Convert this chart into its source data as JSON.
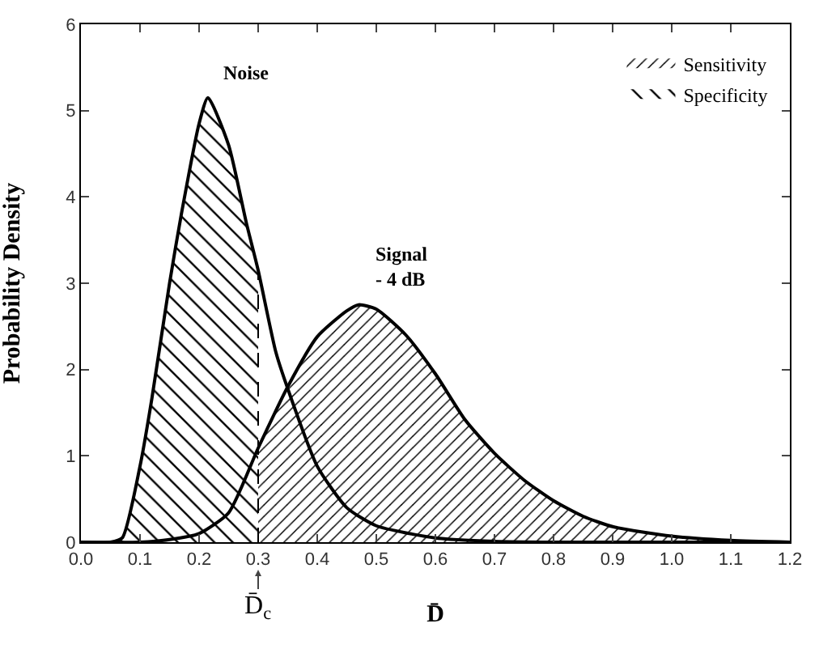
{
  "chart_data": {
    "type": "line",
    "xlabel": "D̄",
    "ylabel": "Probability Density",
    "xlim": [
      0,
      1.2
    ],
    "xticks": [
      {
        "value": 0,
        "label": "0.0"
      },
      0.1,
      0.2,
      0.3,
      0.4,
      0.5,
      0.6,
      0.7,
      0.8,
      0.9,
      {
        "value": 1,
        "label": "1.0"
      },
      1.1,
      1.2
    ],
    "ylim": [
      0,
      6
    ],
    "yticks": [
      0,
      1,
      2,
      3,
      4,
      5,
      6
    ],
    "grid": false,
    "legend": "top right",
    "marker": "none",
    "line_style": "solid",
    "series": [
      {
        "name": "Noise",
        "type": "line",
        "color": "#000000",
        "x": [
          0,
          0.05,
          0.07,
          0.1,
          0.12,
          0.15,
          0.17,
          0.2,
          0.215,
          0.25,
          0.28,
          0.3,
          0.33,
          0.35,
          0.4,
          0.45,
          0.5,
          0.6,
          0.7,
          0.8,
          1.2
        ],
        "values": [
          0,
          0,
          0.05,
          0.88,
          1.66,
          3.0,
          3.8,
          4.85,
          5.15,
          4.6,
          3.7,
          3.15,
          2.2,
          1.78,
          0.88,
          0.4,
          0.19,
          0.05,
          0.01,
          0,
          0
        ]
      },
      {
        "name": "Signal\n- 4 dB",
        "type": "line",
        "color": "#000000",
        "x": [
          0,
          0.1,
          0.15,
          0.2,
          0.25,
          0.3,
          0.35,
          0.4,
          0.45,
          0.47,
          0.5,
          0.55,
          0.6,
          0.65,
          0.7,
          0.75,
          0.8,
          0.85,
          0.9,
          1.0,
          1.1,
          1.2
        ],
        "values": [
          0,
          0,
          0.03,
          0.1,
          0.34,
          1.09,
          1.8,
          2.38,
          2.68,
          2.75,
          2.7,
          2.4,
          1.95,
          1.42,
          1.03,
          0.72,
          0.48,
          0.3,
          0.18,
          0.07,
          0.02,
          0
        ]
      },
      {
        "name": "Sensitivity",
        "type": "area",
        "color": "#000000",
        "x": [
          0.3,
          0.35,
          0.4,
          0.45,
          0.47,
          0.5,
          0.55,
          0.6,
          0.65,
          0.7,
          0.75,
          0.8,
          0.85,
          0.9,
          1.0,
          1.1,
          1.2
        ],
        "values": [
          1.09,
          1.8,
          2.38,
          2.68,
          2.75,
          2.7,
          2.4,
          1.95,
          1.42,
          1.03,
          0.72,
          0.48,
          0.3,
          0.18,
          0.07,
          0.02,
          0
        ]
      },
      {
        "name": "Specificity",
        "type": "area",
        "color": "#000000",
        "x": [
          0.05,
          0.07,
          0.1,
          0.12,
          0.15,
          0.17,
          0.2,
          0.215,
          0.25,
          0.28,
          0.3
        ],
        "values": [
          0,
          0.05,
          0.88,
          1.66,
          3.0,
          3.8,
          4.85,
          5.15,
          4.6,
          3.7,
          3.15
        ]
      }
    ],
    "ref_lines": [
      {
        "axis": "x",
        "value": 0.3,
        "label": "D̄$_{c}$",
        "line_style": "dashed"
      }
    ]
  }
}
